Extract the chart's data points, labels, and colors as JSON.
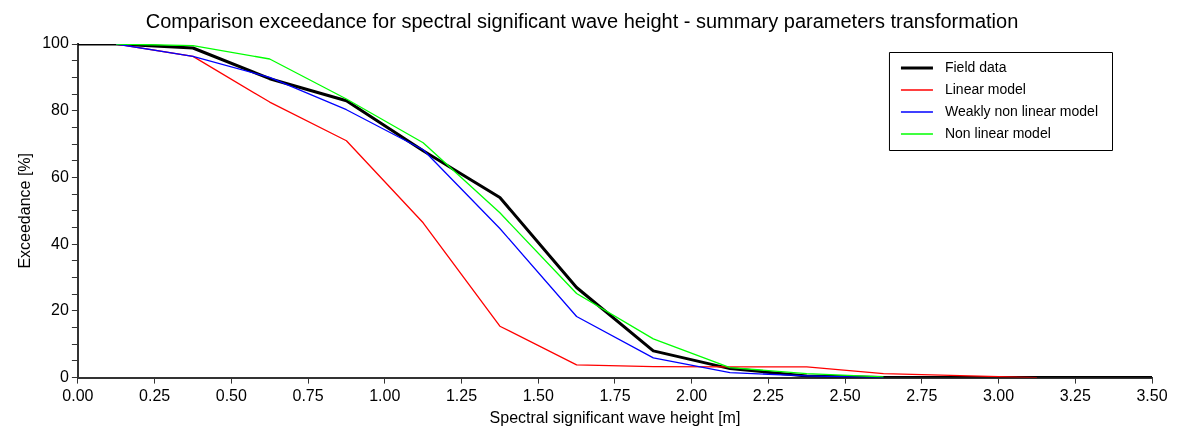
{
  "chart_data": {
    "type": "line",
    "title": "Comparison exceedance for spectral significant wave height - summary parameters transformation",
    "xlabel": "Spectral significant wave height [m]",
    "ylabel": "Exceedance [%]",
    "x": [
      0,
      0.125,
      0.375,
      0.625,
      0.875,
      1.125,
      1.375,
      1.625,
      1.875,
      2.125,
      2.375,
      2.625,
      2.875,
      3.125,
      3.375,
      3.5
    ],
    "series": [
      {
        "name": "Field data",
        "color": "#000000",
        "values": [
          100,
          100,
          98.8,
          89.6,
          83,
          68,
          54,
          27,
          8,
          2.7,
          0.5,
          0,
          0,
          0,
          0,
          0
        ]
      },
      {
        "name": "Linear model",
        "color": "#ff0000",
        "values": [
          null,
          100,
          96.3,
          82.6,
          71,
          46.4,
          15.4,
          3.8,
          3.3,
          3.2,
          3.2,
          1.2,
          0.6,
          0,
          null,
          null
        ]
      },
      {
        "name": "Weakly non linear model",
        "color": "#0000ff",
        "values": [
          null,
          100,
          96.3,
          90,
          80.3,
          68.3,
          44.7,
          18.3,
          5.9,
          1.5,
          0.5,
          0,
          null,
          null,
          null,
          null
        ]
      },
      {
        "name": "Non linear model",
        "color": "#00ff00",
        "values": [
          null,
          100,
          99.5,
          95.5,
          83.5,
          70.4,
          49.4,
          25.2,
          11.6,
          3,
          1.2,
          0.2,
          null,
          null,
          null,
          null
        ]
      }
    ],
    "xlim": [
      0,
      3.5
    ],
    "xticks": [
      {
        "value": 0,
        "label": "0.00"
      },
      {
        "value": 0.25,
        "label": "0.25"
      },
      {
        "value": 0.5,
        "label": "0.50"
      },
      {
        "value": 0.75,
        "label": "0.75"
      },
      {
        "value": 1,
        "label": "1.00"
      },
      {
        "value": 1.25,
        "label": "1.25"
      },
      {
        "value": 1.5,
        "label": "1.50"
      },
      {
        "value": 1.75,
        "label": "1.75"
      },
      {
        "value": 2,
        "label": "2.00"
      },
      {
        "value": 2.25,
        "label": "2.25"
      },
      {
        "value": 2.5,
        "label": "2.50"
      },
      {
        "value": 2.75,
        "label": "2.75"
      },
      {
        "value": 3,
        "label": "3.00"
      },
      {
        "value": 3.25,
        "label": "3.25"
      },
      {
        "value": 3.5,
        "label": "3.50"
      }
    ],
    "ylim": [
      0,
      100
    ],
    "yticks": [
      0,
      {
        "value": 5,
        "label": null
      },
      {
        "value": 10,
        "label": null
      },
      {
        "value": 15,
        "label": null
      },
      20,
      {
        "value": 25,
        "label": null
      },
      {
        "value": 30,
        "label": null
      },
      {
        "value": 35,
        "label": null
      },
      40,
      {
        "value": 45,
        "label": null
      },
      {
        "value": 50,
        "label": null
      },
      {
        "value": 55,
        "label": null
      },
      60,
      {
        "value": 65,
        "label": null
      },
      {
        "value": 70,
        "label": null
      },
      {
        "value": 75,
        "label": null
      },
      80,
      {
        "value": 85,
        "label": null
      },
      {
        "value": 90,
        "label": null
      },
      {
        "value": 95,
        "label": null
      },
      100
    ],
    "grid": false,
    "legend": "top right",
    "marker": "none",
    "line_style": "solid"
  }
}
